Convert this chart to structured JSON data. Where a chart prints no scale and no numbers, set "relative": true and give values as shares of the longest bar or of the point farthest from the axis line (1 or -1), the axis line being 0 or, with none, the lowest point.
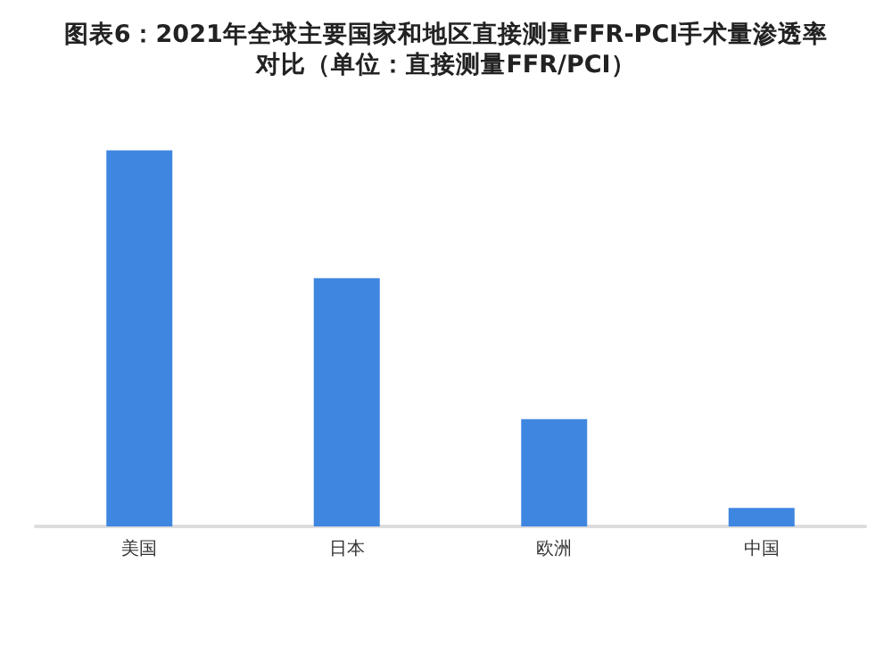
{
  "chart_data": {
    "type": "bar",
    "title": "图表6：2021年全球主要国家和地区直接测量FFR-PCI手术量渗透率对比（单位：直接测量FFR/PCI）",
    "categories": [
      "美国",
      "日本",
      "欧洲",
      "中国"
    ],
    "values": [
      1,
      0.66,
      0.285,
      0.049
    ],
    "color": "#3f86e0",
    "relative": true
  }
}
